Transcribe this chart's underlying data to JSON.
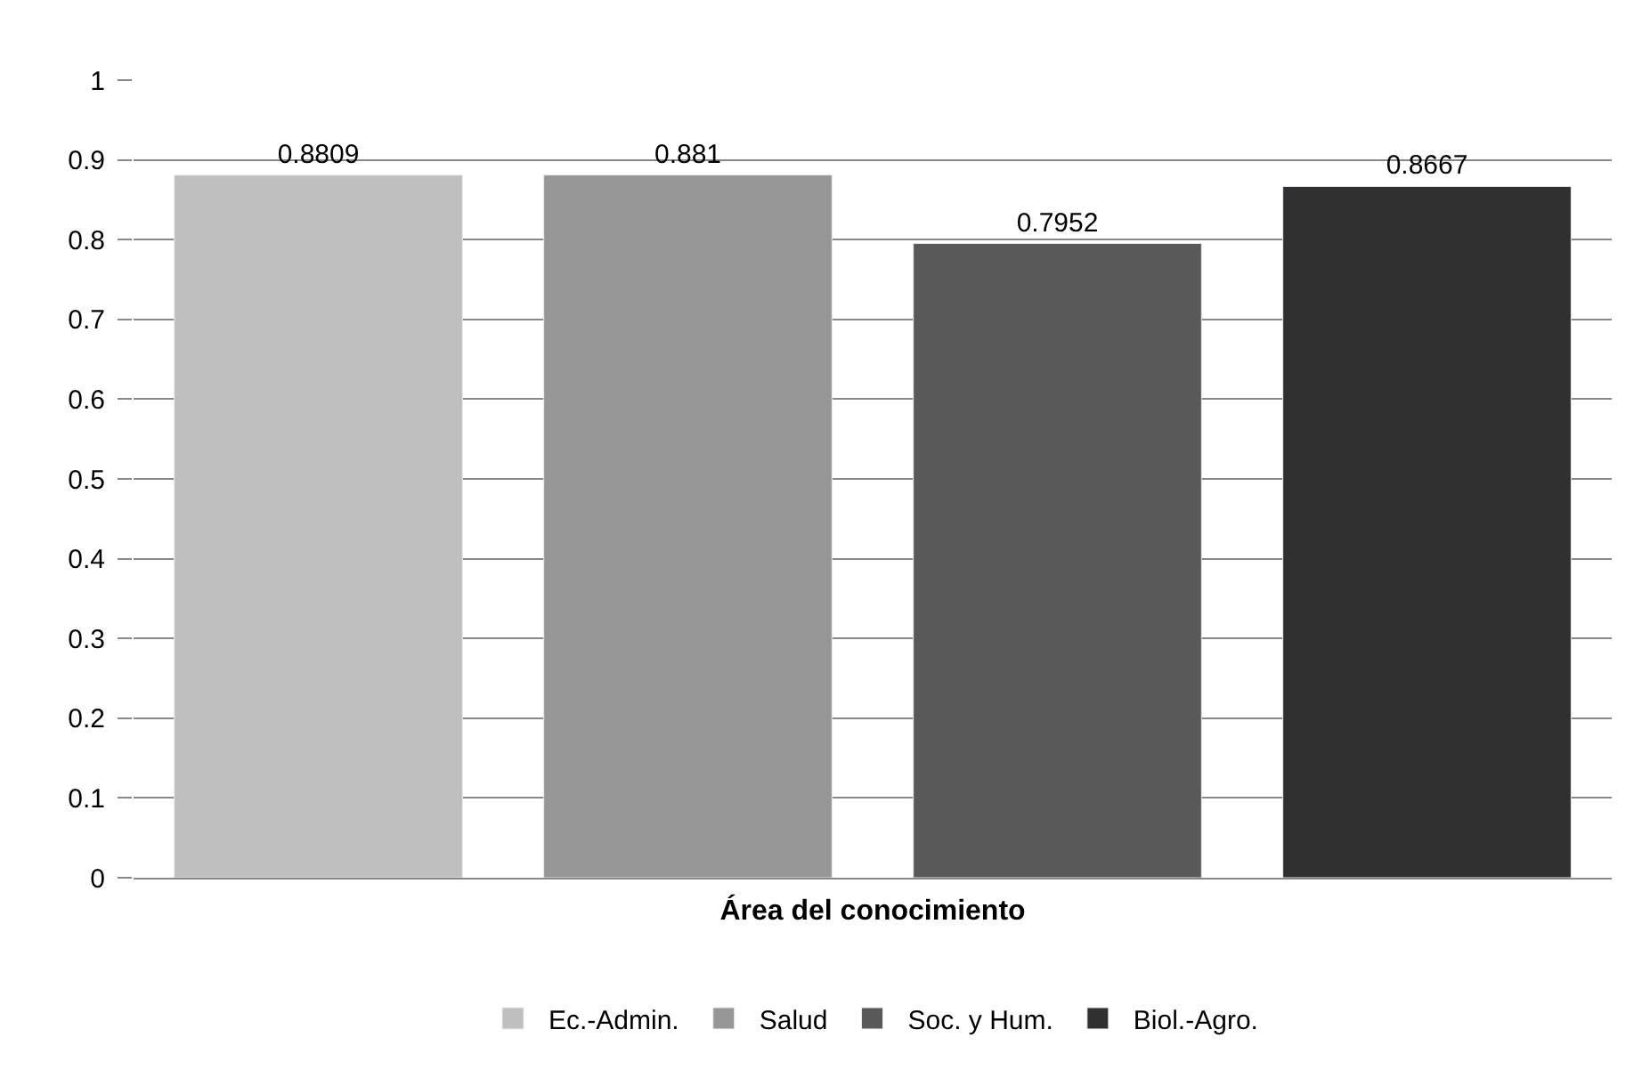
{
  "chart_data": {
    "type": "bar",
    "xlabel": "Área del conocimiento",
    "categories": [
      null,
      null,
      null,
      null
    ],
    "series": [
      {
        "name": "Ec.-Admin.",
        "color": "#bfbfbf",
        "values": [
          0.8809,
          null,
          null,
          null
        ]
      },
      {
        "name": "Salud",
        "color": "#969696",
        "values": [
          null,
          0.881,
          null,
          null
        ]
      },
      {
        "name": "Soc. y Hum.",
        "color": "#595959",
        "values": [
          null,
          null,
          0.7952,
          null
        ]
      },
      {
        "name": "Biol.-Agro.",
        "color": "#303030",
        "values": [
          null,
          null,
          null,
          0.8667
        ]
      }
    ],
    "ylim": [
      0,
      1
    ],
    "yticks": [
      0,
      0.1,
      0.2,
      0.3,
      0.4,
      0.5,
      0.6,
      0.7,
      0.8,
      0.9,
      1
    ],
    "grid": "y",
    "legend": "bottom",
    "data_labels": true,
    "tick_labels": "y"
  }
}
